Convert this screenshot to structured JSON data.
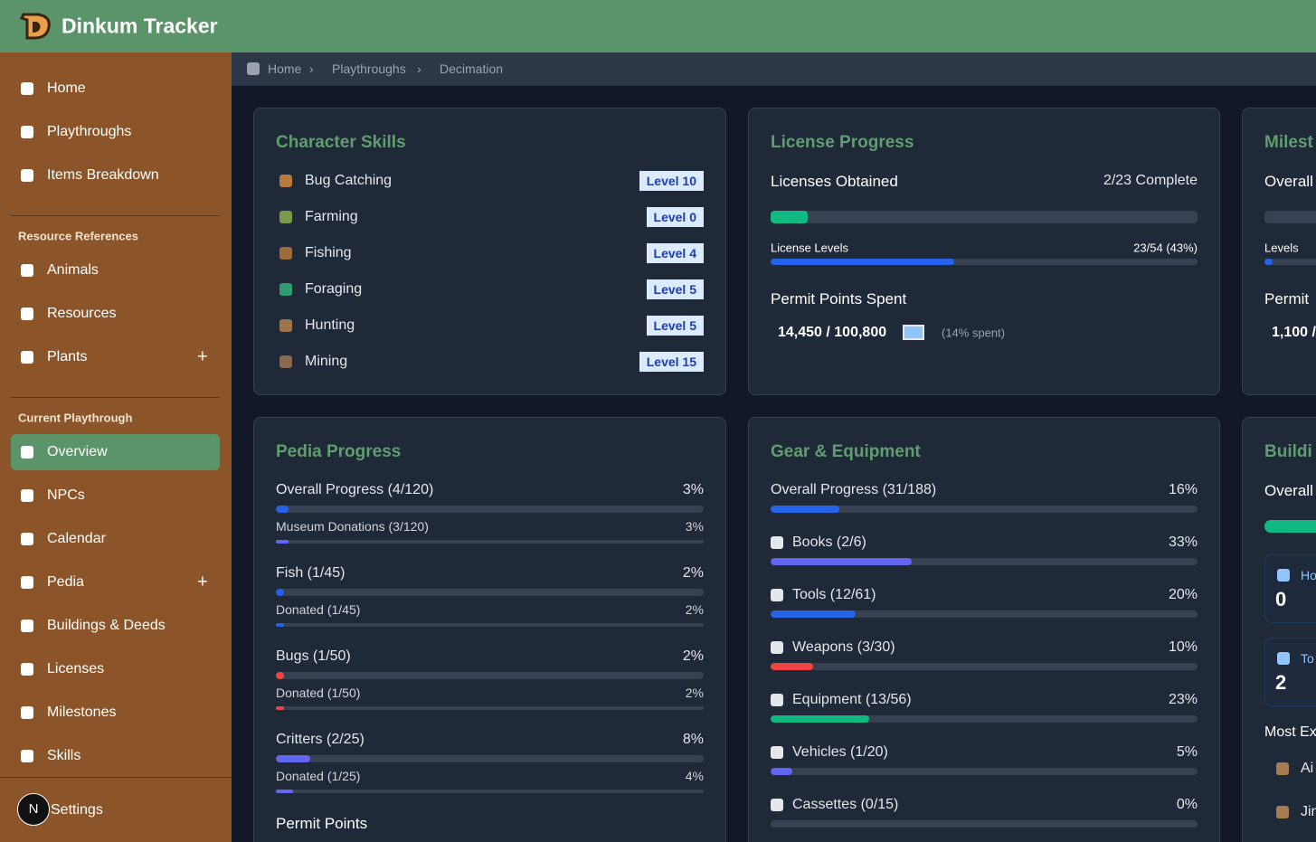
{
  "header": {
    "title": "Dinkum Tracker"
  },
  "sidebar": {
    "main": [
      "Home",
      "Playthroughs",
      "Items Breakdown"
    ],
    "resource_heading": "Resource References",
    "resources": [
      "Animals",
      "Resources",
      "Plants"
    ],
    "current_heading": "Current Playthrough",
    "current": [
      "Overview",
      "NPCs",
      "Calendar",
      "Pedia",
      "Buildings & Deeds",
      "Licenses",
      "Milestones",
      "Skills"
    ],
    "settings": "Settings",
    "avatar": "N"
  },
  "breadcrumb": [
    "Home",
    "Playthroughs",
    "Decimation"
  ],
  "skills": {
    "title": "Character Skills",
    "items": [
      {
        "name": "Bug Catching",
        "level": "Level 10"
      },
      {
        "name": "Farming",
        "level": "Level 0"
      },
      {
        "name": "Fishing",
        "level": "Level 4"
      },
      {
        "name": "Foraging",
        "level": "Level 5"
      },
      {
        "name": "Hunting",
        "level": "Level 5"
      },
      {
        "name": "Mining",
        "level": "Level 15"
      }
    ]
  },
  "license": {
    "title": "License Progress",
    "obtained_label": "Licenses Obtained",
    "obtained": {
      "value": 8.7,
      "label": "2/23 Complete"
    },
    "levels_label": "License Levels",
    "levels": {
      "value": 43,
      "label": "23/54 (43%)"
    },
    "permit_title": "Permit Points Spent",
    "permit": "14,450 / 100,800",
    "permit_note": "(14% spent)"
  },
  "pedia": {
    "title": "Pedia Progress",
    "groups": [
      {
        "name": "Overall Progress (4/120)",
        "percent": {
          "value": 3,
          "label": "3%"
        },
        "color": "#2563eb",
        "sub": {
          "name": "Museum Donations (3/120)",
          "percent": {
            "value": 3,
            "label": "3%"
          },
          "color": "#6366f1"
        }
      },
      {
        "name": "Fish (1/45)",
        "percent": {
          "value": 2,
          "label": "2%"
        },
        "color": "#2563eb",
        "sub": {
          "name": "Donated (1/45)",
          "percent": {
            "value": 2,
            "label": "2%"
          },
          "color": "#2563eb"
        }
      },
      {
        "name": "Bugs (1/50)",
        "percent": {
          "value": 2,
          "label": "2%"
        },
        "color": "#ef4444",
        "sub": {
          "name": "Donated (1/50)",
          "percent": {
            "value": 2,
            "label": "2%"
          },
          "color": "#ef4444"
        }
      },
      {
        "name": "Critters (2/25)",
        "percent": {
          "value": 8,
          "label": "8%"
        },
        "color": "#6366f1",
        "sub": {
          "name": "Donated (1/25)",
          "percent": {
            "value": 4,
            "label": "4%"
          },
          "color": "#6366f1"
        }
      }
    ],
    "footer": "Permit Points"
  },
  "gear": {
    "title": "Gear & Equipment",
    "items": [
      {
        "name": "Overall Progress (31/188)",
        "percent": {
          "value": 16,
          "label": "16%"
        },
        "color": "#2563eb"
      },
      {
        "name": "Books (2/6)",
        "percent": {
          "value": 33,
          "label": "33%"
        },
        "color": "#6366f1"
      },
      {
        "name": "Tools (12/61)",
        "percent": {
          "value": 20,
          "label": "20%"
        },
        "color": "#2563eb"
      },
      {
        "name": "Weapons (3/30)",
        "percent": {
          "value": 10,
          "label": "10%"
        },
        "color": "#ef4444"
      },
      {
        "name": "Equipment (13/56)",
        "percent": {
          "value": 23,
          "label": "23%"
        },
        "color": "#10b981"
      },
      {
        "name": "Vehicles (1/20)",
        "percent": {
          "value": 5,
          "label": "5%"
        },
        "color": "#6366f1"
      },
      {
        "name": "Cassettes (0/15)",
        "percent": {
          "value": 0,
          "label": "0%"
        },
        "color": "#6366f1"
      }
    ]
  },
  "milestones_partial": {
    "title": "Milest",
    "overall": "Overall",
    "levels": "Levels",
    "permit": "Permit",
    "permit_value": "1,100 /"
  },
  "buildings_partial": {
    "title": "Buildi",
    "overall": "Overall",
    "stats": [
      {
        "label": "Ho",
        "value": "0"
      },
      {
        "label": "To",
        "value": "2"
      }
    ],
    "most": "Most Ex",
    "items": [
      "Ai",
      "Jin"
    ]
  }
}
